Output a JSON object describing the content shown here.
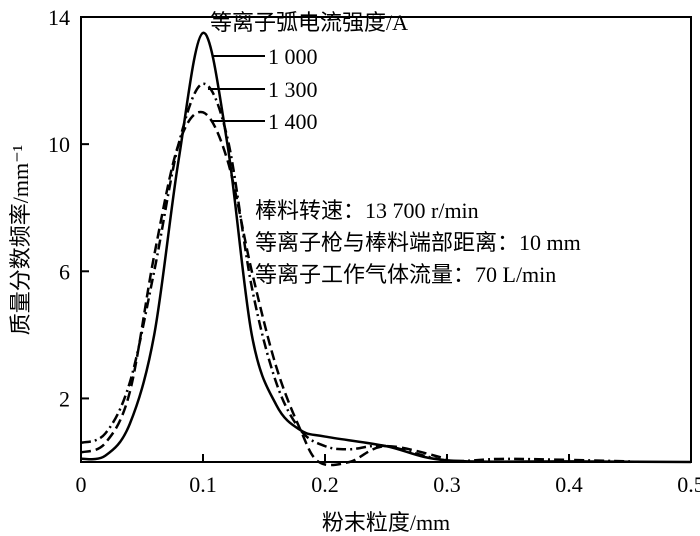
{
  "chart_data": {
    "type": "line",
    "title": "",
    "xlabel": "粉末粒度/mm",
    "ylabel": "质量分数频率/mm⁻¹",
    "xlim": [
      0,
      0.5
    ],
    "ylim": [
      0,
      14
    ],
    "xticks": [
      "0",
      "0.1",
      "0.2",
      "0.3",
      "0.4",
      "0.5"
    ],
    "yticks": [
      "2",
      "6",
      "10",
      "14"
    ],
    "legend_title": "等离子弧电流强度/A",
    "series": [
      {
        "name": "1 000",
        "style": "solid",
        "x": [
          0,
          0.02,
          0.04,
          0.06,
          0.08,
          0.1,
          0.12,
          0.14,
          0.16,
          0.18,
          0.2,
          0.25,
          0.3,
          0.4,
          0.5
        ],
        "y": [
          0.1,
          0.2,
          1.2,
          4,
          9.5,
          13.5,
          10,
          4,
          1.8,
          1.0,
          0.8,
          0.5,
          0.05,
          0.02,
          0
        ]
      },
      {
        "name": "1 300",
        "style": "dashdot",
        "x": [
          0,
          0.02,
          0.04,
          0.06,
          0.08,
          0.1,
          0.12,
          0.14,
          0.16,
          0.18,
          0.2,
          0.22,
          0.25,
          0.3,
          0.35,
          0.45
        ],
        "y": [
          0.6,
          0.9,
          2.5,
          6,
          10,
          11.9,
          10.2,
          5.5,
          2.5,
          1.0,
          0.5,
          0.4,
          0.5,
          0.05,
          0.1,
          0.02
        ]
      },
      {
        "name": "1 400",
        "style": "dashed",
        "x": [
          0,
          0.02,
          0.04,
          0.06,
          0.08,
          0.1,
          0.12,
          0.14,
          0.16,
          0.18,
          0.195,
          0.22,
          0.25,
          0.3
        ],
        "y": [
          0.3,
          0.6,
          2.2,
          6.5,
          10,
          11,
          9.5,
          6,
          3,
          1.0,
          0,
          0,
          0.5,
          0.1
        ]
      }
    ],
    "annotations": [
      "棒料转速：13 700 r/min",
      "等离子枪与棒料端部距离：10 mm",
      "等离子工作气体流量：70 L/min"
    ]
  }
}
